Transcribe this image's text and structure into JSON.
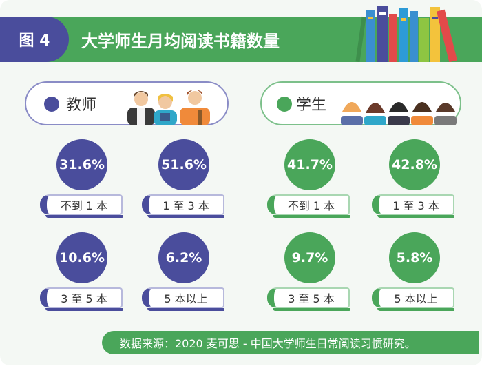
{
  "header": {
    "figure_label": "图 4",
    "title": "大学师生月均阅读书籍数量"
  },
  "groups": {
    "teacher": {
      "label": "教师",
      "color": "#4a4d9c",
      "stats": [
        {
          "value": "31.6%",
          "label": "不到 1 本"
        },
        {
          "value": "51.6%",
          "label": "1 至 3 本"
        },
        {
          "value": "10.6%",
          "label": "3 至 5 本"
        },
        {
          "value": "6.2%",
          "label": "5 本以上"
        }
      ]
    },
    "student": {
      "label": "学生",
      "color": "#4aa65a",
      "stats": [
        {
          "value": "41.7%",
          "label": "不到 1 本"
        },
        {
          "value": "42.8%",
          "label": "1 至 3 本"
        },
        {
          "value": "9.7%",
          "label": "3 至 5 本"
        },
        {
          "value": "5.8%",
          "label": "5 本以上"
        }
      ]
    }
  },
  "footer": {
    "source": "数据来源：2020 麦可思 - 中国大学师生日常阅读习惯研究。"
  }
}
